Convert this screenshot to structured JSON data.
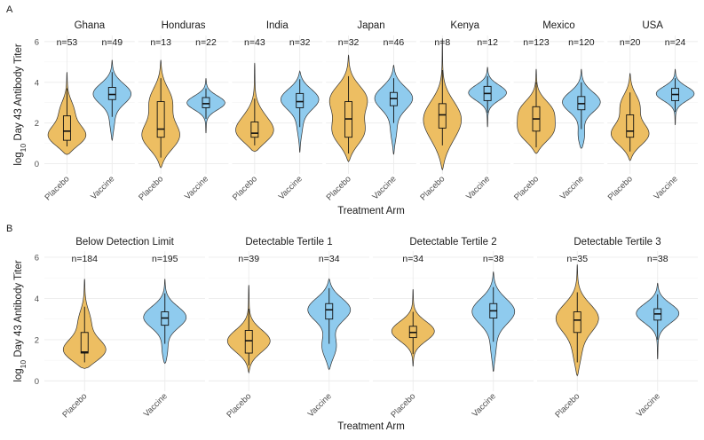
{
  "colors": {
    "placebo": "#EDBE62",
    "vaccine": "#8FCBEE"
  },
  "panels": [
    {
      "tag": "A",
      "ylabel_pre": "log",
      "ylabel_sub": "10",
      "ylabel_post": " Day 43 Antibody Titer",
      "xlabel": "Treatment Arm",
      "ylim": [
        -0.5,
        6.3
      ],
      "yticks": [
        0,
        2,
        4,
        6
      ],
      "categories": [
        "Placebo",
        "Vaccine"
      ],
      "facets": [
        {
          "name": "Ghana",
          "groups": [
            {
              "arm": "Placebo",
              "n": "n=53",
              "min": 0.45,
              "max": 4.5,
              "q1": 1.15,
              "median": 1.6,
              "q3": 2.35,
              "wlo": 0.85,
              "whi": 3.7,
              "shape": [
                [
                  1.3,
                  1.0
                ],
                [
                  2.6,
                  0.3
                ]
              ]
            },
            {
              "arm": "Vaccine",
              "n": "n=49",
              "min": 1.15,
              "max": 5.1,
              "q1": 3.15,
              "median": 3.4,
              "q3": 3.75,
              "wlo": 2.3,
              "whi": 4.5,
              "shape": [
                [
                  3.45,
                  1.0
                ],
                [
                  2.0,
                  0.12
                ]
              ]
            }
          ]
        },
        {
          "name": "Honduras",
          "groups": [
            {
              "arm": "Placebo",
              "n": "n=13",
              "min": -0.2,
              "max": 5.1,
              "q1": 1.3,
              "median": 1.7,
              "q3": 3.05,
              "wlo": 0.3,
              "whi": 4.2,
              "shape": [
                [
                  1.3,
                  0.9
                ],
                [
                  3.1,
                  0.5
                ]
              ]
            },
            {
              "arm": "Vaccine",
              "n": "n=22",
              "min": 1.5,
              "max": 4.2,
              "q1": 2.75,
              "median": 2.95,
              "q3": 3.25,
              "wlo": 2.2,
              "whi": 3.7,
              "shape": [
                [
                  3.0,
                  1.0
                ]
              ]
            }
          ]
        },
        {
          "name": "India",
          "groups": [
            {
              "arm": "Placebo",
              "n": "n=43",
              "min": 0.6,
              "max": 4.95,
              "q1": 1.3,
              "median": 1.5,
              "q3": 2.05,
              "wlo": 0.9,
              "whi": 3.2,
              "shape": [
                [
                  1.45,
                  1.0
                ],
                [
                  2.3,
                  0.3
                ]
              ]
            },
            {
              "arm": "Vaccine",
              "n": "n=32",
              "min": 0.55,
              "max": 4.55,
              "q1": 2.75,
              "median": 3.05,
              "q3": 3.45,
              "wlo": 1.8,
              "whi": 4.15,
              "shape": [
                [
                  3.2,
                  1.0
                ],
                [
                  1.8,
                  0.12
                ]
              ]
            }
          ]
        },
        {
          "name": "Japan",
          "groups": [
            {
              "arm": "Placebo",
              "n": "n=32",
              "min": 0.1,
              "max": 5.35,
              "q1": 1.3,
              "median": 2.2,
              "q3": 3.05,
              "wlo": 0.5,
              "whi": 4.3,
              "shape": [
                [
                  1.5,
                  0.7
                ],
                [
                  3.2,
                  0.75
                ]
              ]
            },
            {
              "arm": "Vaccine",
              "n": "n=46",
              "min": 0.45,
              "max": 4.85,
              "q1": 2.85,
              "median": 3.2,
              "q3": 3.5,
              "wlo": 2.0,
              "whi": 4.2,
              "shape": [
                [
                  3.25,
                  1.0
                ],
                [
                  1.6,
                  0.15
                ]
              ]
            }
          ]
        },
        {
          "name": "Kenya",
          "groups": [
            {
              "arm": "Placebo",
              "n": "n=8",
              "min": -0.3,
              "max": 6.15,
              "q1": 1.75,
              "median": 2.4,
              "q3": 2.95,
              "wlo": 0.9,
              "whi": 4.6,
              "shape": [
                [
                  2.3,
                  1.0
                ],
                [
                  1.2,
                  0.4
                ]
              ]
            },
            {
              "arm": "Vaccine",
              "n": "n=12",
              "min": 1.8,
              "max": 4.75,
              "q1": 3.1,
              "median": 3.45,
              "q3": 3.8,
              "wlo": 2.5,
              "whi": 4.3,
              "shape": [
                [
                  3.5,
                  1.0
                ]
              ]
            }
          ]
        },
        {
          "name": "Mexico",
          "groups": [
            {
              "arm": "Placebo",
              "n": "n=123",
              "min": 0.5,
              "max": 4.65,
              "q1": 1.6,
              "median": 2.2,
              "q3": 2.8,
              "wlo": 0.8,
              "whi": 4.0,
              "shape": [
                [
                  1.5,
                  0.75
                ],
                [
                  2.6,
                  0.65
                ]
              ]
            },
            {
              "arm": "Vaccine",
              "n": "n=120",
              "min": 0.75,
              "max": 4.65,
              "q1": 2.65,
              "median": 2.95,
              "q3": 3.3,
              "wlo": 1.7,
              "whi": 4.0,
              "shape": [
                [
                  3.05,
                  1.0
                ],
                [
                  1.3,
                  0.2
                ]
              ]
            }
          ]
        },
        {
          "name": "USA",
          "groups": [
            {
              "arm": "Placebo",
              "n": "n=20",
              "min": 0.15,
              "max": 4.45,
              "q1": 1.3,
              "median": 1.6,
              "q3": 2.4,
              "wlo": 0.6,
              "whi": 3.5,
              "shape": [
                [
                  1.4,
                  0.85
                ],
                [
                  2.9,
                  0.4
                ]
              ]
            },
            {
              "arm": "Vaccine",
              "n": "n=24",
              "min": 1.9,
              "max": 4.65,
              "q1": 3.1,
              "median": 3.4,
              "q3": 3.7,
              "wlo": 2.55,
              "whi": 4.2,
              "shape": [
                [
                  3.45,
                  1.0
                ]
              ]
            }
          ]
        }
      ]
    },
    {
      "tag": "B",
      "ylabel_pre": "log",
      "ylabel_sub": "10",
      "ylabel_post": " Day 43 Antibody Titer",
      "xlabel": "Treatment Arm",
      "ylim": [
        -0.5,
        6.3
      ],
      "yticks": [
        0,
        2,
        4,
        6
      ],
      "categories": [
        "Placebo",
        "Vaccine"
      ],
      "facets": [
        {
          "name": "Below Detection Limit",
          "groups": [
            {
              "arm": "Placebo",
              "n": "n=184",
              "min": 0.6,
              "max": 4.95,
              "q1": 1.35,
              "median": 1.4,
              "q3": 2.35,
              "wlo": 0.9,
              "whi": 3.6,
              "shape": [
                [
                  1.4,
                  1.0
                ],
                [
                  2.9,
                  0.22
                ]
              ]
            },
            {
              "arm": "Vaccine",
              "n": "n=195",
              "min": 0.85,
              "max": 4.95,
              "q1": 2.7,
              "median": 3.05,
              "q3": 3.35,
              "wlo": 1.8,
              "whi": 4.25,
              "shape": [
                [
                  3.1,
                  1.0
                ],
                [
                  1.4,
                  0.15
                ]
              ]
            }
          ]
        },
        {
          "name": "Detectable Tertile 1",
          "groups": [
            {
              "arm": "Placebo",
              "n": "n=39",
              "min": 0.4,
              "max": 4.65,
              "q1": 1.35,
              "median": 1.95,
              "q3": 2.45,
              "wlo": 0.75,
              "whi": 3.5,
              "shape": [
                [
                  1.9,
                  1.0
                ]
              ]
            },
            {
              "arm": "Vaccine",
              "n": "n=34",
              "min": 0.55,
              "max": 4.95,
              "q1": 3.0,
              "median": 3.45,
              "q3": 3.75,
              "wlo": 1.8,
              "whi": 4.5,
              "shape": [
                [
                  3.5,
                  1.0
                ],
                [
                  1.6,
                  0.35
                ]
              ]
            }
          ]
        },
        {
          "name": "Detectable Tertile 2",
          "groups": [
            {
              "arm": "Placebo",
              "n": "n=34",
              "min": 0.7,
              "max": 4.45,
              "q1": 2.1,
              "median": 2.35,
              "q3": 2.65,
              "wlo": 1.3,
              "whi": 3.35,
              "shape": [
                [
                  2.4,
                  1.0
                ]
              ]
            },
            {
              "arm": "Vaccine",
              "n": "n=38",
              "min": 0.45,
              "max": 5.3,
              "q1": 3.05,
              "median": 3.4,
              "q3": 3.75,
              "wlo": 1.9,
              "whi": 4.55,
              "shape": [
                [
                  3.4,
                  1.0
                ],
                [
                  1.6,
                  0.12
                ]
              ]
            }
          ]
        },
        {
          "name": "Detectable Tertile 3",
          "groups": [
            {
              "arm": "Placebo",
              "n": "n=35",
              "min": 0.25,
              "max": 5.65,
              "q1": 2.35,
              "median": 2.95,
              "q3": 3.35,
              "wlo": 0.9,
              "whi": 4.3,
              "shape": [
                [
                  3.05,
                  1.0
                ],
                [
                  1.3,
                  0.2
                ]
              ]
            },
            {
              "arm": "Vaccine",
              "n": "n=38",
              "min": 1.05,
              "max": 4.75,
              "q1": 2.95,
              "median": 3.25,
              "q3": 3.5,
              "wlo": 2.0,
              "whi": 4.2,
              "shape": [
                [
                  3.3,
                  1.0
                ]
              ]
            }
          ]
        }
      ]
    }
  ],
  "chart_data": [
    {
      "type": "violin",
      "title": "A",
      "xlabel": "Treatment Arm",
      "ylabel": "log10 Day 43 Antibody Titer",
      "ylim": [
        -0.5,
        6.3
      ],
      "yticks": [
        0,
        2,
        4,
        6
      ],
      "categories": [
        "Placebo",
        "Vaccine"
      ],
      "facets": [
        "Ghana",
        "Honduras",
        "India",
        "Japan",
        "Kenya",
        "Mexico",
        "USA"
      ],
      "series": [
        {
          "name": "Placebo",
          "n": [
            53,
            13,
            43,
            32,
            8,
            123,
            20
          ],
          "median": [
            1.6,
            1.7,
            1.5,
            2.2,
            2.4,
            2.2,
            1.6
          ],
          "q1": [
            1.15,
            1.3,
            1.3,
            1.3,
            1.75,
            1.6,
            1.3
          ],
          "q3": [
            2.35,
            3.05,
            2.05,
            3.05,
            2.95,
            2.8,
            2.4
          ]
        },
        {
          "name": "Vaccine",
          "n": [
            49,
            22,
            32,
            46,
            12,
            120,
            24
          ],
          "median": [
            3.4,
            2.95,
            3.05,
            3.2,
            3.45,
            2.95,
            3.4
          ],
          "q1": [
            3.15,
            2.75,
            2.75,
            2.85,
            3.1,
            2.65,
            3.1
          ],
          "q3": [
            3.75,
            3.25,
            3.45,
            3.5,
            3.8,
            3.3,
            3.7
          ]
        }
      ]
    },
    {
      "type": "violin",
      "title": "B",
      "xlabel": "Treatment Arm",
      "ylabel": "log10 Day 43 Antibody Titer",
      "ylim": [
        -0.5,
        6.3
      ],
      "yticks": [
        0,
        2,
        4,
        6
      ],
      "categories": [
        "Placebo",
        "Vaccine"
      ],
      "facets": [
        "Below Detection Limit",
        "Detectable Tertile 1",
        "Detectable Tertile 2",
        "Detectable Tertile 3"
      ],
      "series": [
        {
          "name": "Placebo",
          "n": [
            184,
            39,
            34,
            35
          ],
          "median": [
            1.4,
            1.95,
            2.35,
            2.95
          ],
          "q1": [
            1.35,
            1.35,
            2.1,
            2.35
          ],
          "q3": [
            2.35,
            2.45,
            2.65,
            3.35
          ]
        },
        {
          "name": "Vaccine",
          "n": [
            195,
            34,
            38,
            38
          ],
          "median": [
            3.05,
            3.45,
            3.4,
            3.25
          ],
          "q1": [
            2.7,
            3.0,
            3.05,
            2.95
          ],
          "q3": [
            3.35,
            3.75,
            3.75,
            3.5
          ]
        }
      ]
    }
  ]
}
